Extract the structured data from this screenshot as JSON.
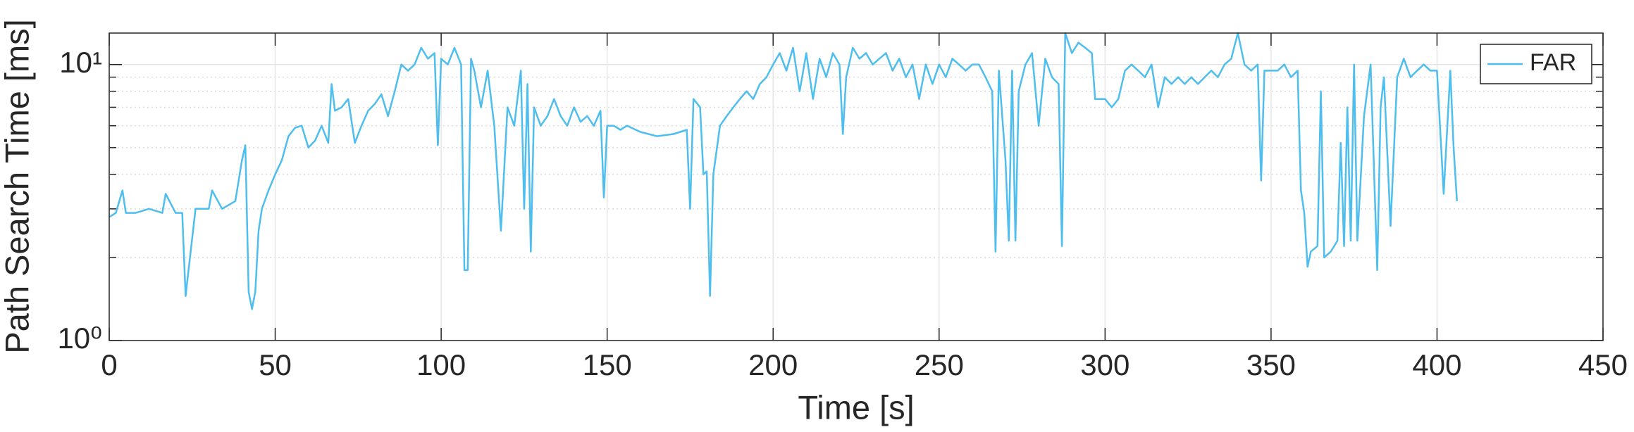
{
  "chart_data": {
    "type": "line",
    "xlabel": "Time [s]",
    "ylabel": "Path Search Time [ms]",
    "x": [
      0,
      2,
      4,
      5,
      8,
      12,
      16,
      17,
      20,
      22,
      23,
      26,
      30,
      31,
      34,
      38,
      40,
      41,
      42,
      43,
      44,
      45,
      46,
      48,
      50,
      52,
      54,
      56,
      58,
      60,
      62,
      64,
      66,
      67,
      68,
      70,
      72,
      74,
      76,
      78,
      80,
      82,
      84,
      86,
      88,
      90,
      92,
      94,
      96,
      98,
      99,
      100,
      102,
      104,
      106,
      107,
      108,
      109,
      110,
      112,
      114,
      116,
      118,
      120,
      122,
      124,
      125,
      126,
      127,
      128,
      130,
      132,
      134,
      136,
      138,
      140,
      142,
      144,
      146,
      148,
      149,
      150,
      152,
      154,
      156,
      160,
      165,
      170,
      174,
      175,
      176,
      178,
      179,
      180,
      181,
      182,
      184,
      186,
      188,
      190,
      192,
      194,
      196,
      198,
      200,
      202,
      204,
      206,
      208,
      210,
      212,
      214,
      216,
      218,
      220,
      221,
      222,
      224,
      226,
      228,
      230,
      232,
      234,
      236,
      238,
      240,
      242,
      244,
      246,
      248,
      250,
      252,
      254,
      256,
      258,
      260,
      262,
      264,
      266,
      267,
      268,
      270,
      271,
      272,
      273,
      274,
      276,
      278,
      280,
      282,
      284,
      286,
      287,
      288,
      290,
      292,
      294,
      296,
      297,
      300,
      302,
      304,
      306,
      308,
      310,
      312,
      314,
      316,
      318,
      320,
      322,
      324,
      326,
      328,
      330,
      332,
      334,
      336,
      338,
      340,
      342,
      344,
      346,
      347,
      348,
      350,
      352,
      354,
      356,
      358,
      359,
      360,
      361,
      362,
      364,
      365,
      366,
      368,
      370,
      371,
      372,
      373,
      374,
      375,
      376,
      378,
      380,
      382,
      383,
      384,
      386,
      388,
      390,
      392,
      394,
      396,
      398,
      400,
      402,
      404,
      405,
      406
    ],
    "series": [
      {
        "name": "FAR",
        "color": "#4dbeee",
        "values": [
          2.8,
          2.9,
          3.5,
          2.9,
          2.9,
          3.0,
          2.9,
          3.4,
          2.9,
          2.9,
          1.45,
          3.0,
          3.0,
          3.5,
          3.0,
          3.2,
          4.5,
          5.1,
          1.5,
          1.3,
          1.5,
          2.5,
          3.0,
          3.5,
          4.0,
          4.5,
          5.5,
          5.9,
          6.0,
          5.0,
          5.3,
          6.0,
          5.2,
          8.5,
          6.8,
          7.0,
          7.5,
          5.2,
          6.0,
          6.8,
          7.2,
          7.8,
          6.5,
          8.0,
          10.0,
          9.5,
          10.0,
          11.5,
          10.5,
          11.0,
          5.1,
          10.5,
          10.0,
          11.5,
          10.0,
          1.8,
          1.8,
          10.5,
          9.5,
          7.0,
          9.5,
          6.0,
          2.5,
          7.0,
          6.0,
          9.5,
          3.0,
          8.5,
          2.1,
          7.0,
          6.0,
          6.5,
          7.5,
          6.5,
          6.0,
          7.0,
          6.2,
          6.5,
          6.0,
          6.8,
          3.3,
          6.0,
          6.0,
          5.8,
          6.0,
          5.7,
          5.5,
          5.6,
          5.8,
          3.0,
          7.5,
          7.0,
          4.0,
          4.1,
          1.45,
          4.0,
          6.0,
          6.5,
          7.0,
          7.5,
          8.0,
          7.5,
          8.5,
          9.0,
          10.0,
          11.0,
          9.5,
          11.5,
          8.0,
          11.0,
          7.5,
          10.5,
          9.0,
          11.0,
          10.0,
          5.6,
          9.0,
          11.5,
          10.5,
          11.0,
          10.0,
          10.5,
          11.0,
          9.5,
          10.5,
          9.0,
          10.0,
          7.5,
          10.0,
          8.5,
          10.0,
          9.0,
          10.5,
          10.0,
          9.5,
          10.0,
          10.0,
          9.0,
          8.0,
          2.1,
          9.5,
          4.5,
          2.3,
          9.5,
          2.3,
          8.0,
          10.0,
          11.0,
          6.0,
          10.5,
          9.0,
          8.5,
          2.2,
          13.0,
          11.0,
          12.0,
          11.5,
          11.0,
          7.5,
          7.5,
          7.0,
          7.5,
          9.5,
          10.0,
          9.5,
          9.0,
          10.0,
          7.0,
          9.0,
          8.5,
          9.0,
          8.5,
          9.0,
          8.5,
          9.0,
          9.5,
          9.0,
          10.0,
          10.5,
          13.0,
          10.0,
          9.5,
          10.0,
          3.8,
          9.5,
          9.5,
          9.5,
          10.0,
          9.0,
          9.5,
          3.5,
          2.9,
          1.85,
          2.1,
          2.2,
          8.0,
          2.0,
          2.1,
          2.3,
          5.2,
          2.2,
          7.0,
          2.3,
          10.0,
          2.3,
          6.5,
          10.0,
          1.8,
          7.0,
          9.0,
          2.6,
          9.0,
          10.5,
          9.0,
          9.5,
          10.0,
          9.5,
          9.5,
          3.4,
          9.5,
          5.0,
          3.2
        ]
      }
    ],
    "xlim": [
      0,
      450
    ],
    "xticks": [
      0,
      50,
      100,
      150,
      200,
      250,
      300,
      350,
      400,
      450
    ],
    "ylim": [
      1,
      13
    ],
    "ylog": true,
    "yticks": [
      {
        "value": 1,
        "label": "10⁰"
      },
      {
        "value": 10,
        "label": "10¹"
      }
    ],
    "yminorticks": [
      2,
      3,
      4,
      5,
      6,
      7,
      8,
      9
    ],
    "grid": true,
    "legend": "upper right"
  }
}
